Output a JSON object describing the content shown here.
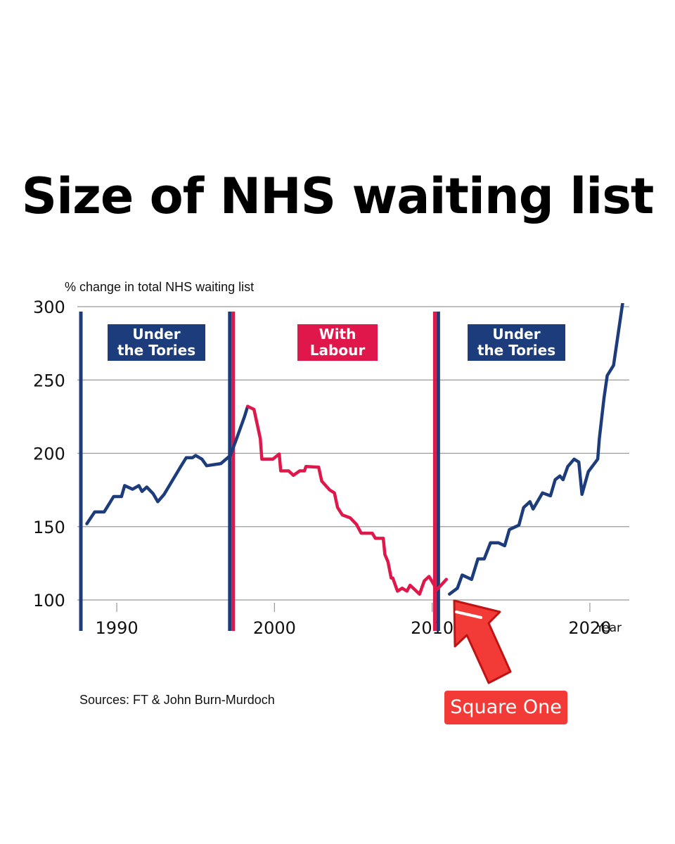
{
  "title": "Size of NHS waiting list",
  "ylabel": "% change in total NHS waiting list",
  "source": "Sources: FT & John Burn-Murdoch",
  "callout": "Square One",
  "colors": {
    "tories": "#1c3c7c",
    "labour": "#e0174a",
    "callout": "#f23b36",
    "grid": "#999999"
  },
  "periods": [
    {
      "line1": "Under",
      "line2": "the Tories",
      "color": "#1c3c7c"
    },
    {
      "line1": "With",
      "line2": "Labour",
      "color": "#e0174a"
    },
    {
      "line1": "Under",
      "line2": "the Tories",
      "color": "#1c3c7c"
    }
  ],
  "chart_data": {
    "type": "line",
    "title": "Size of NHS waiting list",
    "ylabel": "% change in total NHS waiting list",
    "xlabel": "Year",
    "ylim": [
      100,
      300
    ],
    "xlim": [
      1987.5,
      2022.5
    ],
    "yticks": [
      100,
      150,
      200,
      250,
      300
    ],
    "xticks": [
      1990,
      2000,
      2010,
      2020
    ],
    "grid": true,
    "annotations": [
      "Under the Tories",
      "With Labour",
      "Under the Tories",
      "Square One"
    ],
    "period_boundaries": [
      1997.3,
      2010.3
    ],
    "series": [
      {
        "color": "#1c3c7c",
        "points": [
          [
            1988.1,
            152
          ],
          [
            1988.6,
            160
          ],
          [
            1989.2,
            160
          ],
          [
            1989.8,
            170.5
          ],
          [
            1990.3,
            170.5
          ],
          [
            1990.5,
            178
          ],
          [
            1991.0,
            175.5
          ],
          [
            1991.4,
            178
          ],
          [
            1991.6,
            174
          ],
          [
            1991.9,
            177
          ],
          [
            1992.3,
            172.5
          ],
          [
            1992.6,
            167
          ],
          [
            1993.0,
            172
          ],
          [
            1993.5,
            181
          ],
          [
            1994.0,
            190
          ],
          [
            1994.4,
            197
          ],
          [
            1994.8,
            197
          ],
          [
            1995.0,
            198.5
          ],
          [
            1995.4,
            196
          ],
          [
            1995.7,
            191.5
          ],
          [
            1996.6,
            193
          ],
          [
            1997.2,
            198.5
          ],
          [
            1997.6,
            210
          ],
          [
            1998.1,
            225
          ],
          [
            1998.3,
            232
          ]
        ]
      },
      {
        "color": "#e0174a",
        "points": [
          [
            1998.3,
            232
          ],
          [
            1998.7,
            230
          ],
          [
            1999.1,
            210
          ],
          [
            1999.2,
            196
          ],
          [
            1999.9,
            196
          ],
          [
            2000.3,
            199.5
          ],
          [
            2000.4,
            188
          ],
          [
            2000.9,
            188
          ],
          [
            2001.2,
            185
          ],
          [
            2001.6,
            188
          ],
          [
            2001.9,
            188
          ],
          [
            2002.0,
            191
          ],
          [
            2002.8,
            190.5
          ],
          [
            2003.0,
            181
          ],
          [
            2003.5,
            175
          ],
          [
            2003.8,
            173
          ],
          [
            2004.0,
            163
          ],
          [
            2004.3,
            158
          ],
          [
            2004.8,
            156
          ],
          [
            2005.2,
            151.5
          ],
          [
            2005.5,
            145.5
          ],
          [
            2006.2,
            145.5
          ],
          [
            2006.4,
            142
          ],
          [
            2006.9,
            142
          ],
          [
            2007.0,
            131
          ],
          [
            2007.2,
            126
          ],
          [
            2007.4,
            115
          ],
          [
            2007.5,
            115
          ],
          [
            2007.8,
            106
          ],
          [
            2008.1,
            108
          ],
          [
            2008.4,
            106
          ],
          [
            2008.6,
            110
          ],
          [
            2009.0,
            106
          ],
          [
            2009.2,
            104
          ],
          [
            2009.5,
            113
          ],
          [
            2009.8,
            116
          ],
          [
            2010.3,
            107
          ],
          [
            2010.6,
            110.5
          ],
          [
            2010.9,
            114
          ]
        ]
      },
      {
        "color": "#1c3c7c",
        "points": [
          [
            2011.1,
            104
          ],
          [
            2011.6,
            108
          ],
          [
            2011.9,
            117
          ],
          [
            2012.5,
            114
          ],
          [
            2012.9,
            128
          ],
          [
            2013.3,
            128
          ],
          [
            2013.7,
            139
          ],
          [
            2014.2,
            139
          ],
          [
            2014.6,
            137
          ],
          [
            2014.9,
            148
          ],
          [
            2015.5,
            151
          ],
          [
            2015.8,
            163
          ],
          [
            2016.2,
            167
          ],
          [
            2016.4,
            162
          ],
          [
            2017.0,
            173
          ],
          [
            2017.5,
            171
          ],
          [
            2017.8,
            182
          ],
          [
            2018.1,
            184.5
          ],
          [
            2018.3,
            182
          ],
          [
            2018.6,
            191
          ],
          [
            2019.0,
            196
          ],
          [
            2019.3,
            194
          ],
          [
            2019.5,
            172
          ],
          [
            2019.9,
            187.5
          ],
          [
            2020.5,
            196
          ],
          [
            2020.6,
            210
          ],
          [
            2020.9,
            238
          ],
          [
            2021.1,
            253
          ],
          [
            2021.5,
            260
          ],
          [
            2022.1,
            304
          ]
        ]
      }
    ]
  }
}
